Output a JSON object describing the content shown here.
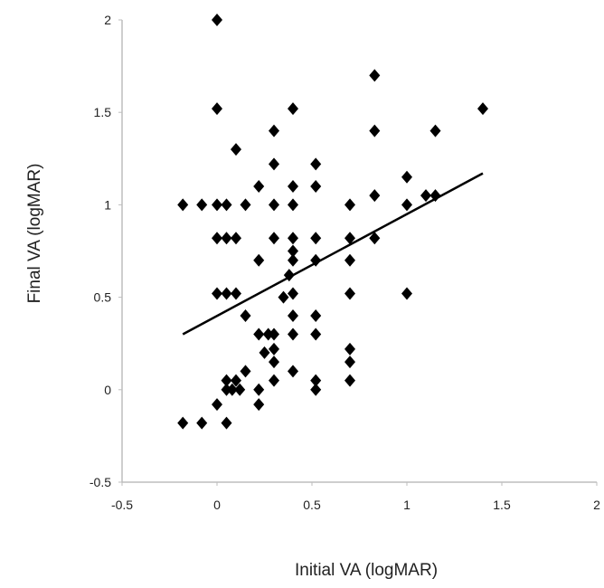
{
  "chart_data": {
    "type": "scatter",
    "xlabel": "Initial VA (logMAR)",
    "ylabel": "Final VA (logMAR)",
    "xlim": [
      -0.5,
      2
    ],
    "ylim": [
      -0.5,
      2
    ],
    "x_ticks": [
      "-0.5",
      "0",
      "0.5",
      "1",
      "1.5",
      "2"
    ],
    "y_ticks": [
      "-0.5",
      "0",
      "0.5",
      "1",
      "1.5",
      "2"
    ],
    "grid": false,
    "marker": "diamond",
    "marker_color": "#000000",
    "series": [
      {
        "points": [
          [
            0.0,
            2.0
          ],
          [
            0.0,
            1.52
          ],
          [
            0.4,
            1.52
          ],
          [
            0.83,
            1.7
          ],
          [
            1.4,
            1.52
          ],
          [
            0.3,
            1.4
          ],
          [
            0.83,
            1.4
          ],
          [
            1.15,
            1.4
          ],
          [
            0.1,
            1.3
          ],
          [
            0.3,
            1.22
          ],
          [
            0.52,
            1.22
          ],
          [
            0.4,
            1.1
          ],
          [
            0.52,
            1.1
          ],
          [
            1.0,
            1.15
          ],
          [
            0.22,
            1.1
          ],
          [
            -0.18,
            1.0
          ],
          [
            -0.08,
            1.0
          ],
          [
            0.0,
            1.0
          ],
          [
            0.05,
            1.0
          ],
          [
            0.15,
            1.0
          ],
          [
            0.3,
            1.0
          ],
          [
            0.4,
            1.0
          ],
          [
            0.7,
            1.0
          ],
          [
            0.83,
            1.05
          ],
          [
            1.0,
            1.0
          ],
          [
            1.1,
            1.05
          ],
          [
            1.15,
            1.05
          ],
          [
            0.0,
            0.82
          ],
          [
            0.05,
            0.82
          ],
          [
            0.1,
            0.82
          ],
          [
            0.3,
            0.82
          ],
          [
            0.4,
            0.82
          ],
          [
            0.52,
            0.82
          ],
          [
            0.7,
            0.82
          ],
          [
            0.83,
            0.82
          ],
          [
            0.22,
            0.7
          ],
          [
            0.4,
            0.75
          ],
          [
            0.4,
            0.7
          ],
          [
            0.52,
            0.7
          ],
          [
            0.7,
            0.7
          ],
          [
            0.38,
            0.62
          ],
          [
            0.0,
            0.52
          ],
          [
            0.05,
            0.52
          ],
          [
            0.1,
            0.52
          ],
          [
            0.35,
            0.5
          ],
          [
            0.4,
            0.52
          ],
          [
            0.7,
            0.52
          ],
          [
            1.0,
            0.52
          ],
          [
            0.15,
            0.4
          ],
          [
            0.4,
            0.4
          ],
          [
            0.52,
            0.4
          ],
          [
            0.22,
            0.3
          ],
          [
            0.27,
            0.3
          ],
          [
            0.3,
            0.3
          ],
          [
            0.4,
            0.3
          ],
          [
            0.52,
            0.3
          ],
          [
            0.25,
            0.2
          ],
          [
            0.3,
            0.22
          ],
          [
            0.7,
            0.22
          ],
          [
            0.3,
            0.15
          ],
          [
            0.7,
            0.15
          ],
          [
            0.4,
            0.1
          ],
          [
            0.15,
            0.1
          ],
          [
            0.05,
            0.05
          ],
          [
            0.1,
            0.05
          ],
          [
            0.3,
            0.05
          ],
          [
            0.52,
            0.05
          ],
          [
            0.7,
            0.05
          ],
          [
            0.05,
            0.0
          ],
          [
            0.08,
            0.0
          ],
          [
            0.12,
            0.0
          ],
          [
            0.22,
            0.0
          ],
          [
            0.52,
            0.0
          ],
          [
            0.0,
            -0.08
          ],
          [
            0.22,
            -0.08
          ],
          [
            -0.18,
            -0.18
          ],
          [
            -0.08,
            -0.18
          ],
          [
            0.05,
            -0.18
          ]
        ]
      }
    ],
    "trendline": {
      "x": [
        -0.18,
        1.4
      ],
      "y": [
        0.3,
        1.17
      ]
    }
  }
}
